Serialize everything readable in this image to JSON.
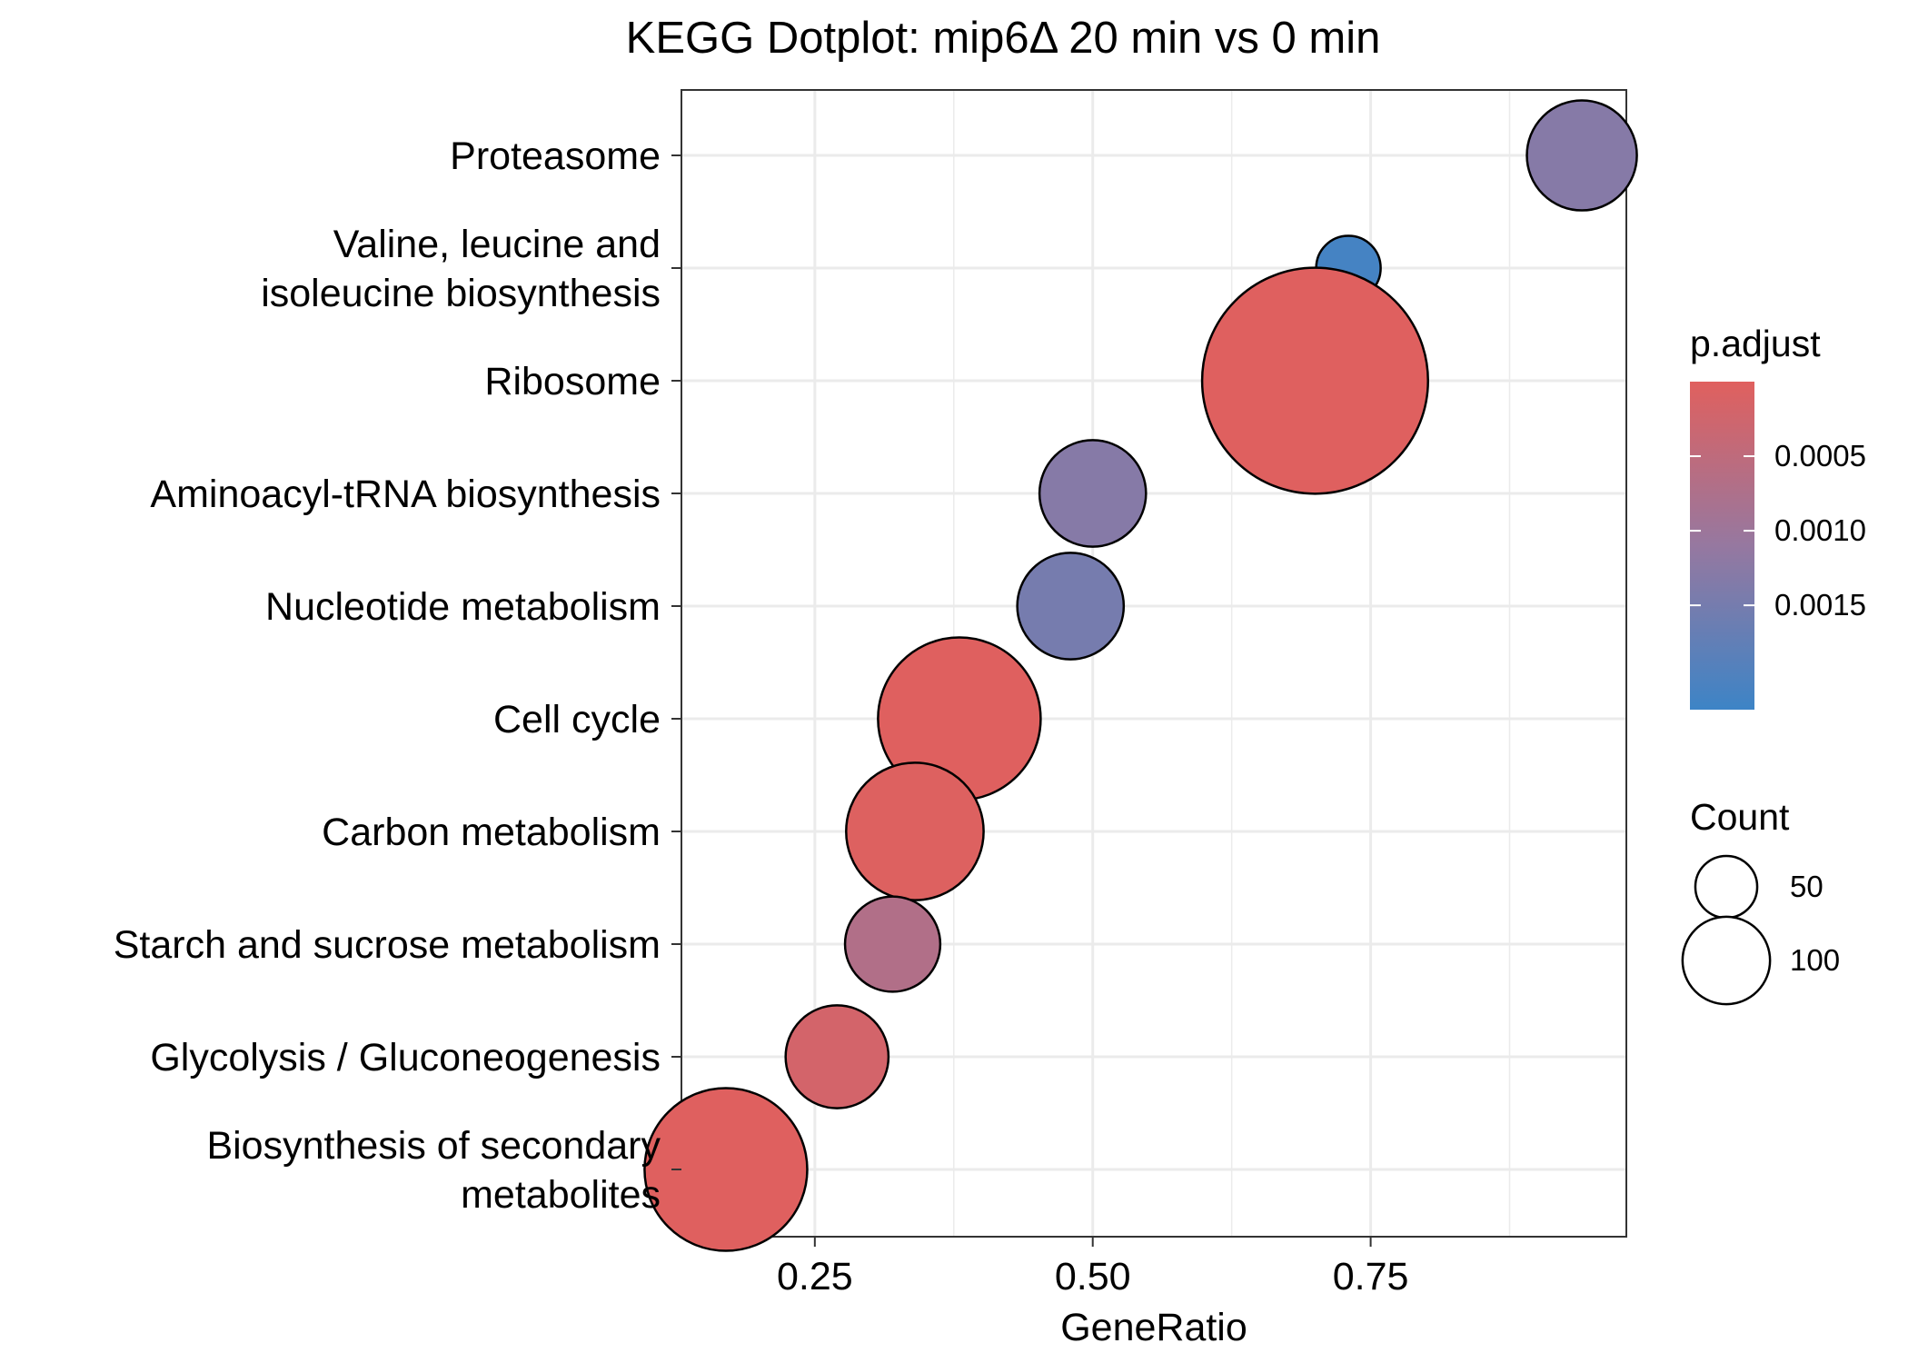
{
  "chart_data": {
    "type": "scatter",
    "title": "KEGG Dotplot: mip6Δ 20 min vs 0 min",
    "xlabel": "GeneRatio",
    "ylabel": "",
    "xlim": [
      0.13,
      0.98
    ],
    "x_ticks": [
      0.25,
      0.5,
      0.75
    ],
    "x_tick_labels": [
      "0.25",
      "0.50",
      "0.75"
    ],
    "grid": true,
    "categories": [
      "Proteasome",
      "Valine, leucine and\nisoleucine biosynthesis",
      "Ribosome",
      "Aminoacyl-tRNA biosynthesis",
      "Nucleotide metabolism",
      "Cell cycle",
      "Carbon metabolism",
      "Starch and sucrose metabolism",
      "Glycolysis / Gluconeogenesis",
      "Biosynthesis of secondary\nmetabolites"
    ],
    "points": [
      {
        "category": "Proteasome",
        "gene_ratio": 0.94,
        "count": 32,
        "p_adjust": 0.0013
      },
      {
        "category": "Valine, leucine and isoleucine biosynthesis",
        "gene_ratio": 0.73,
        "count": 11,
        "p_adjust": 0.0021
      },
      {
        "category": "Ribosome",
        "gene_ratio": 0.7,
        "count": 135,
        "p_adjust": 1e-05
      },
      {
        "category": "Aminoacyl-tRNA biosynthesis",
        "gene_ratio": 0.5,
        "count": 30,
        "p_adjust": 0.0013
      },
      {
        "category": "Nucleotide metabolism",
        "gene_ratio": 0.48,
        "count": 30,
        "p_adjust": 0.0015
      },
      {
        "category": "Cell cycle",
        "gene_ratio": 0.38,
        "count": 70,
        "p_adjust": 2e-05
      },
      {
        "category": "Carbon metabolism",
        "gene_ratio": 0.34,
        "count": 50,
        "p_adjust": 4e-05
      },
      {
        "category": "Starch and sucrose metabolism",
        "gene_ratio": 0.32,
        "count": 24,
        "p_adjust": 0.0007
      },
      {
        "category": "Glycolysis / Gluconeogenesis",
        "gene_ratio": 0.27,
        "count": 28,
        "p_adjust": 0.0002
      },
      {
        "category": "Biosynthesis of secondary metabolites",
        "gene_ratio": 0.17,
        "count": 70,
        "p_adjust": 1e-05
      }
    ],
    "color_legend": {
      "title": "p.adjust",
      "range": [
        0.0,
        0.0022
      ],
      "ticks": [
        0.0005,
        0.001,
        0.0015
      ],
      "tick_labels": [
        "0.0005",
        "0.0010",
        "0.0015"
      ],
      "low_color": "#e0605e",
      "high_color": "#3d84c6",
      "placement": "right"
    },
    "size_legend": {
      "title": "Count",
      "values": [
        50,
        100
      ],
      "labels": [
        "50",
        "100"
      ],
      "placement": "right"
    }
  }
}
